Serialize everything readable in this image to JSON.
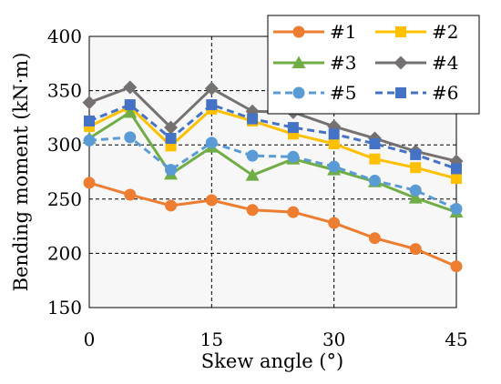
{
  "chart_data": {
    "type": "line",
    "xlabel": "Skew angle (°)",
    "ylabel": "Bending moment (kN·m)",
    "x": [
      0,
      5,
      10,
      15,
      20,
      25,
      30,
      35,
      40,
      45
    ],
    "xlim": [
      0,
      45
    ],
    "ylim": [
      150,
      400
    ],
    "x_ticks": [
      0,
      15,
      30,
      45
    ],
    "y_ticks": [
      150,
      200,
      250,
      300,
      350,
      400
    ],
    "grid": "dashed major gridlines",
    "plot_background": "#f7f7f7",
    "legend_position": "top-right, inside plot, 2 columns",
    "series": [
      {
        "name": "#1",
        "color": "#ED7D31",
        "marker": "circle",
        "dash": "solid",
        "values": [
          265,
          254,
          244,
          249,
          240,
          238,
          228,
          214,
          204,
          188
        ]
      },
      {
        "name": "#2",
        "color": "#FFC000",
        "marker": "square",
        "dash": "solid",
        "values": [
          317,
          335,
          299,
          333,
          322,
          310,
          301,
          287,
          279,
          269
        ]
      },
      {
        "name": "#3",
        "color": "#70AD47",
        "marker": "triangle",
        "dash": "solid",
        "values": [
          306,
          330,
          273,
          298,
          272,
          287,
          277,
          266,
          251,
          238
        ]
      },
      {
        "name": "#4",
        "color": "#767171",
        "marker": "diamond",
        "dash": "solid",
        "values": [
          339,
          353,
          316,
          352,
          331,
          330,
          317,
          306,
          294,
          285
        ]
      },
      {
        "name": "#5",
        "color": "#5B9BD5",
        "marker": "circle",
        "dash": "dashed",
        "values": [
          304,
          307,
          277,
          302,
          290,
          289,
          280,
          267,
          258,
          241
        ]
      },
      {
        "name": "#6",
        "color": "#4472C4",
        "marker": "square",
        "dash": "dashed",
        "values": [
          322,
          337,
          306,
          337,
          324,
          316,
          310,
          301,
          291,
          278
        ]
      }
    ]
  }
}
